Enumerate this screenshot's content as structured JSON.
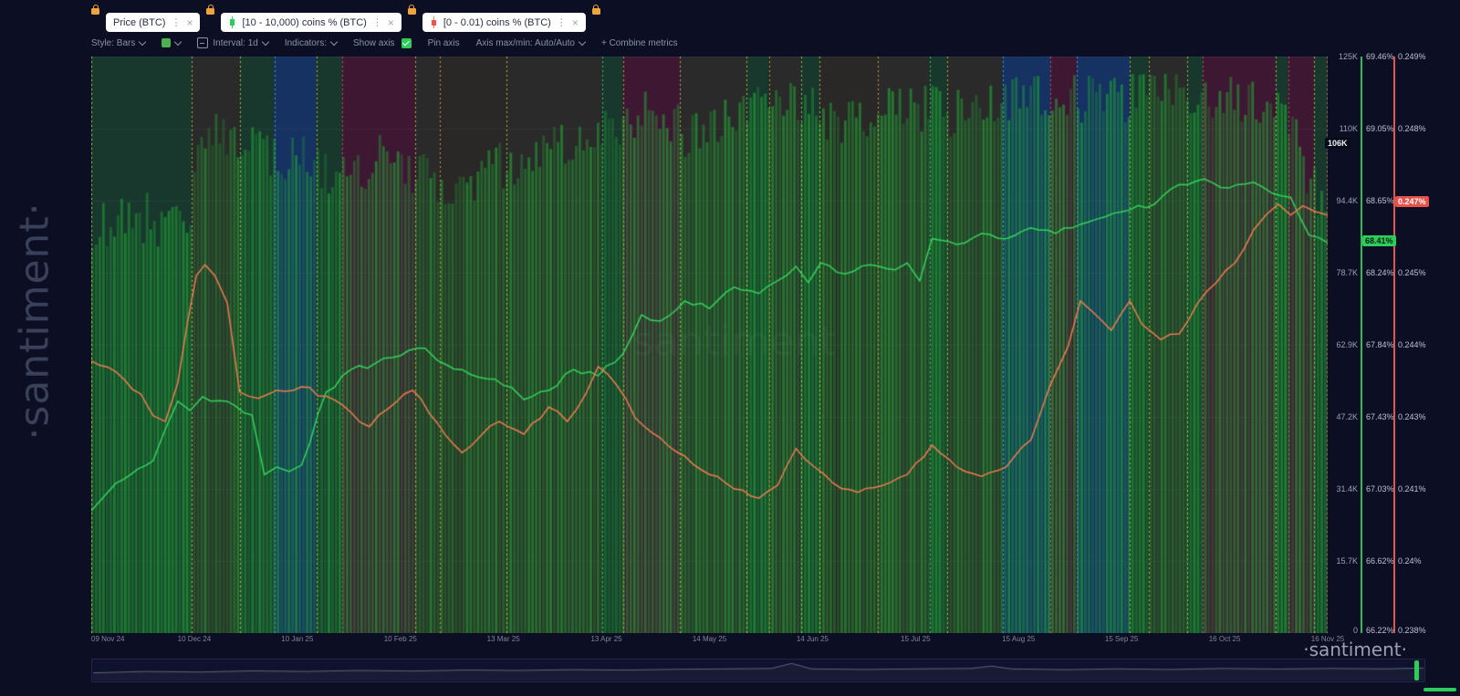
{
  "app": {
    "logo_vertical": "·santiment·",
    "logo_bottom": "·santiment·",
    "watermark": "santiment"
  },
  "icons": {
    "kebab_glyph": "⋮",
    "close_glyph": "×",
    "lock": "lock-icon",
    "chevron": "chevron-down-icon",
    "checkbox": "checkmark-icon",
    "candle_green": "candlestick-up-icon",
    "candle_red": "candlestick-down-icon"
  },
  "tabs": [
    {
      "label": "Price (BTC)",
      "locked": true
    },
    {
      "label": "[10 - 10,000) coins % (BTC)",
      "locked": true,
      "icon_color": "#2ecc5b"
    },
    {
      "label": "[0 - 0.01) coins % (BTC)",
      "locked": true,
      "icon_color": "#ef5350"
    }
  ],
  "toolbar": {
    "style_label": "Style: Bars",
    "swatch_color": "#4caf50",
    "interval_label": "Interval: 1d",
    "indicators_label": "Indicators:",
    "show_axis_label": "Show axis",
    "pin_axis_label": "Pin axis",
    "axis_maxmin_label": "Axis max/min: Auto/Auto",
    "combine_label": "+ Combine metrics"
  },
  "axes": {
    "price": {
      "labels": [
        "125K",
        "110K",
        "94.4K",
        "78.7K",
        "62.9K",
        "47.2K",
        "31.4K",
        "15.7K",
        "0"
      ],
      "badge": "106K"
    },
    "green_pct": {
      "labels": [
        "69.46%",
        "69.05%",
        "68.65%",
        "68.24%",
        "67.84%",
        "67.43%",
        "67.03%",
        "66.62%",
        "66.22%"
      ],
      "badge": "68.41%",
      "color": "#2ecc5b"
    },
    "red_pct": {
      "labels": [
        "0.249%",
        "0.248%",
        "",
        "0.245%",
        "0.244%",
        "0.243%",
        "0.241%",
        "0.24%",
        "0.238%"
      ],
      "badge": "0.247%",
      "color": "#e8504a"
    }
  },
  "x_axis": {
    "dates": [
      "09 Nov 24",
      "10 Dec 24",
      "10 Jan 25",
      "10 Feb 25",
      "13 Mar 25",
      "13 Apr 25",
      "14 May 25",
      "14 Jun 25",
      "15 Jul 25",
      "15 Aug 25",
      "15 Sep 25",
      "16 Oct 25",
      "16 Nov 25"
    ]
  },
  "chart_data": {
    "type": "bar",
    "bar_series_name": "Price (BTC)",
    "bar_count": 340,
    "bar_envelope": [
      [
        0.0,
        0.3
      ],
      [
        0.03,
        0.27
      ],
      [
        0.06,
        0.29
      ],
      [
        0.08,
        0.27
      ],
      [
        0.085,
        0.155
      ],
      [
        0.1,
        0.14
      ],
      [
        0.12,
        0.16
      ],
      [
        0.15,
        0.18
      ],
      [
        0.17,
        0.16
      ],
      [
        0.19,
        0.19
      ],
      [
        0.21,
        0.22
      ],
      [
        0.24,
        0.17
      ],
      [
        0.27,
        0.21
      ],
      [
        0.3,
        0.23
      ],
      [
        0.33,
        0.19
      ],
      [
        0.36,
        0.165
      ],
      [
        0.39,
        0.14
      ],
      [
        0.42,
        0.12
      ],
      [
        0.45,
        0.1
      ],
      [
        0.48,
        0.13
      ],
      [
        0.51,
        0.115
      ],
      [
        0.54,
        0.095
      ],
      [
        0.57,
        0.075
      ],
      [
        0.6,
        0.11
      ],
      [
        0.63,
        0.095
      ],
      [
        0.66,
        0.085
      ],
      [
        0.69,
        0.1
      ],
      [
        0.72,
        0.09
      ],
      [
        0.75,
        0.075
      ],
      [
        0.78,
        0.065
      ],
      [
        0.81,
        0.075
      ],
      [
        0.84,
        0.07
      ],
      [
        0.87,
        0.06
      ],
      [
        0.9,
        0.065
      ],
      [
        0.93,
        0.07
      ],
      [
        0.95,
        0.085
      ],
      [
        0.97,
        0.11
      ],
      [
        0.985,
        0.2
      ],
      [
        1.0,
        0.27
      ]
    ],
    "series": [
      {
        "name": "[10 - 10,000) coins % (BTC)",
        "color": "#35d05e",
        "points": [
          [
            0.0,
            0.788
          ],
          [
            0.01,
            0.764
          ],
          [
            0.02,
            0.74
          ],
          [
            0.032,
            0.725
          ],
          [
            0.05,
            0.701
          ],
          [
            0.06,
            0.646
          ],
          [
            0.07,
            0.598
          ],
          [
            0.08,
            0.614
          ],
          [
            0.09,
            0.59
          ],
          [
            0.11,
            0.598
          ],
          [
            0.13,
            0.622
          ],
          [
            0.14,
            0.725
          ],
          [
            0.15,
            0.712
          ],
          [
            0.16,
            0.72
          ],
          [
            0.17,
            0.709
          ],
          [
            0.19,
            0.582
          ],
          [
            0.21,
            0.543
          ],
          [
            0.23,
            0.532
          ],
          [
            0.25,
            0.519
          ],
          [
            0.27,
            0.506
          ],
          [
            0.28,
            0.527
          ],
          [
            0.3,
            0.543
          ],
          [
            0.32,
            0.559
          ],
          [
            0.34,
            0.574
          ],
          [
            0.35,
            0.595
          ],
          [
            0.37,
            0.579
          ],
          [
            0.39,
            0.543
          ],
          [
            0.41,
            0.554
          ],
          [
            0.43,
            0.516
          ],
          [
            0.445,
            0.448
          ],
          [
            0.46,
            0.459
          ],
          [
            0.48,
            0.424
          ],
          [
            0.5,
            0.437
          ],
          [
            0.52,
            0.4
          ],
          [
            0.54,
            0.411
          ],
          [
            0.555,
            0.389
          ],
          [
            0.57,
            0.364
          ],
          [
            0.58,
            0.392
          ],
          [
            0.59,
            0.358
          ],
          [
            0.61,
            0.377
          ],
          [
            0.63,
            0.361
          ],
          [
            0.65,
            0.37
          ],
          [
            0.66,
            0.358
          ],
          [
            0.67,
            0.389
          ],
          [
            0.68,
            0.316
          ],
          [
            0.7,
            0.326
          ],
          [
            0.72,
            0.307
          ],
          [
            0.74,
            0.316
          ],
          [
            0.76,
            0.297
          ],
          [
            0.78,
            0.307
          ],
          [
            0.8,
            0.291
          ],
          [
            0.82,
            0.278
          ],
          [
            0.84,
            0.266
          ],
          [
            0.86,
            0.256
          ],
          [
            0.88,
            0.222
          ],
          [
            0.9,
            0.212
          ],
          [
            0.92,
            0.228
          ],
          [
            0.94,
            0.218
          ],
          [
            0.955,
            0.237
          ],
          [
            0.97,
            0.244
          ],
          [
            0.985,
            0.31
          ],
          [
            1.0,
            0.323
          ]
        ]
      },
      {
        "name": "[0 - 0.01) coins % (BTC)",
        "color": "#ef7a52",
        "points": [
          [
            0.0,
            0.528
          ],
          [
            0.02,
            0.547
          ],
          [
            0.04,
            0.585
          ],
          [
            0.05,
            0.623
          ],
          [
            0.06,
            0.633
          ],
          [
            0.07,
            0.566
          ],
          [
            0.078,
            0.459
          ],
          [
            0.085,
            0.38
          ],
          [
            0.092,
            0.361
          ],
          [
            0.1,
            0.38
          ],
          [
            0.11,
            0.427
          ],
          [
            0.12,
            0.582
          ],
          [
            0.135,
            0.593
          ],
          [
            0.15,
            0.579
          ],
          [
            0.17,
            0.573
          ],
          [
            0.19,
            0.589
          ],
          [
            0.21,
            0.617
          ],
          [
            0.225,
            0.642
          ],
          [
            0.24,
            0.611
          ],
          [
            0.26,
            0.579
          ],
          [
            0.28,
            0.636
          ],
          [
            0.3,
            0.687
          ],
          [
            0.315,
            0.658
          ],
          [
            0.33,
            0.633
          ],
          [
            0.35,
            0.655
          ],
          [
            0.37,
            0.608
          ],
          [
            0.385,
            0.633
          ],
          [
            0.4,
            0.585
          ],
          [
            0.41,
            0.538
          ],
          [
            0.425,
            0.57
          ],
          [
            0.44,
            0.627
          ],
          [
            0.46,
            0.661
          ],
          [
            0.48,
            0.693
          ],
          [
            0.5,
            0.725
          ],
          [
            0.52,
            0.75
          ],
          [
            0.54,
            0.766
          ],
          [
            0.555,
            0.744
          ],
          [
            0.57,
            0.68
          ],
          [
            0.585,
            0.712
          ],
          [
            0.6,
            0.74
          ],
          [
            0.62,
            0.756
          ],
          [
            0.64,
            0.744
          ],
          [
            0.66,
            0.725
          ],
          [
            0.68,
            0.674
          ],
          [
            0.7,
            0.712
          ],
          [
            0.72,
            0.728
          ],
          [
            0.74,
            0.712
          ],
          [
            0.76,
            0.665
          ],
          [
            0.775,
            0.573
          ],
          [
            0.79,
            0.503
          ],
          [
            0.8,
            0.424
          ],
          [
            0.81,
            0.443
          ],
          [
            0.825,
            0.475
          ],
          [
            0.84,
            0.424
          ],
          [
            0.85,
            0.465
          ],
          [
            0.865,
            0.491
          ],
          [
            0.88,
            0.481
          ],
          [
            0.895,
            0.427
          ],
          [
            0.91,
            0.392
          ],
          [
            0.925,
            0.358
          ],
          [
            0.94,
            0.301
          ],
          [
            0.95,
            0.275
          ],
          [
            0.96,
            0.256
          ],
          [
            0.97,
            0.275
          ],
          [
            0.98,
            0.259
          ],
          [
            0.99,
            0.269
          ],
          [
            1.0,
            0.275
          ]
        ]
      }
    ],
    "bands": [
      {
        "x0": 0.0,
        "x1": 0.081,
        "tint": "green",
        "edge": "yellow"
      },
      {
        "x0": 0.081,
        "x1": 0.12,
        "tint": "olive",
        "edge": "yellow"
      },
      {
        "x0": 0.12,
        "x1": 0.148,
        "tint": "green",
        "edge": "yellow"
      },
      {
        "x0": 0.148,
        "x1": 0.182,
        "tint": "blue",
        "edge": "blue"
      },
      {
        "x0": 0.182,
        "x1": 0.203,
        "tint": "green",
        "edge": "yellow"
      },
      {
        "x0": 0.203,
        "x1": 0.262,
        "tint": "maroon",
        "edge": "red"
      },
      {
        "x0": 0.262,
        "x1": 0.282,
        "tint": "olive",
        "edge": "yellow"
      },
      {
        "x0": 0.282,
        "x1": 0.336,
        "tint": "olive2",
        "edge": "orange"
      },
      {
        "x0": 0.336,
        "x1": 0.413,
        "tint": "olive",
        "edge": "yellow"
      },
      {
        "x0": 0.413,
        "x1": 0.43,
        "tint": "green",
        "edge": "green"
      },
      {
        "x0": 0.43,
        "x1": 0.476,
        "tint": "maroon",
        "edge": "orange"
      },
      {
        "x0": 0.476,
        "x1": 0.53,
        "tint": "olive",
        "edge": "yellow"
      },
      {
        "x0": 0.53,
        "x1": 0.548,
        "tint": "green",
        "edge": "yellow"
      },
      {
        "x0": 0.548,
        "x1": 0.574,
        "tint": "olive",
        "edge": "orange"
      },
      {
        "x0": 0.574,
        "x1": 0.589,
        "tint": "green",
        "edge": "yellow"
      },
      {
        "x0": 0.589,
        "x1": 0.636,
        "tint": "olive2",
        "edge": "yellow"
      },
      {
        "x0": 0.636,
        "x1": 0.678,
        "tint": "olive",
        "edge": "orange"
      },
      {
        "x0": 0.678,
        "x1": 0.692,
        "tint": "green",
        "edge": "green"
      },
      {
        "x0": 0.692,
        "x1": 0.737,
        "tint": "olive",
        "edge": "yellow"
      },
      {
        "x0": 0.737,
        "x1": 0.776,
        "tint": "blue",
        "edge": "blue"
      },
      {
        "x0": 0.776,
        "x1": 0.797,
        "tint": "maroon",
        "edge": "red"
      },
      {
        "x0": 0.797,
        "x1": 0.84,
        "tint": "blue",
        "edge": "blue"
      },
      {
        "x0": 0.84,
        "x1": 0.855,
        "tint": "green",
        "edge": "yellow"
      },
      {
        "x0": 0.855,
        "x1": 0.886,
        "tint": "olive",
        "edge": "yellow"
      },
      {
        "x0": 0.886,
        "x1": 0.899,
        "tint": "green",
        "edge": "yellow"
      },
      {
        "x0": 0.899,
        "x1": 0.958,
        "tint": "maroon",
        "edge": "red"
      },
      {
        "x0": 0.958,
        "x1": 0.968,
        "tint": "green",
        "edge": "yellow"
      },
      {
        "x0": 0.968,
        "x1": 0.989,
        "tint": "maroon",
        "edge": "red"
      },
      {
        "x0": 0.989,
        "x1": 1.0,
        "tint": "green",
        "edge": "yellow"
      }
    ],
    "right_edge": "red",
    "nav_line": {
      "color": "rgba(190,200,225,0.45)",
      "points": [
        [
          0.0,
          0.62
        ],
        [
          0.04,
          0.55
        ],
        [
          0.08,
          0.58
        ],
        [
          0.12,
          0.52
        ],
        [
          0.16,
          0.55
        ],
        [
          0.2,
          0.5
        ],
        [
          0.24,
          0.53
        ],
        [
          0.28,
          0.48
        ],
        [
          0.32,
          0.5
        ],
        [
          0.36,
          0.46
        ],
        [
          0.4,
          0.48
        ],
        [
          0.44,
          0.44
        ],
        [
          0.48,
          0.42
        ],
        [
          0.51,
          0.4
        ],
        [
          0.525,
          0.15
        ],
        [
          0.54,
          0.42
        ],
        [
          0.58,
          0.45
        ],
        [
          0.62,
          0.42
        ],
        [
          0.66,
          0.4
        ],
        [
          0.675,
          0.28
        ],
        [
          0.69,
          0.42
        ],
        [
          0.73,
          0.46
        ],
        [
          0.77,
          0.42
        ],
        [
          0.81,
          0.45
        ],
        [
          0.85,
          0.4
        ],
        [
          0.89,
          0.43
        ],
        [
          0.93,
          0.4
        ],
        [
          0.97,
          0.42
        ],
        [
          1.0,
          0.38
        ]
      ]
    },
    "colors": {
      "plot_bg": "#11152f",
      "grid": "rgba(160,175,210,0.07)",
      "bar_rgb": "34,165,52",
      "watermark": "rgba(200,210,230,0.05)",
      "band_tints": {
        "green": "rgba(42,138,48,0.30)",
        "olive": "rgba(125,112,28,0.24)",
        "olive2": "rgba(98,86,22,0.30)",
        "maroon": "rgba(158,32,62,0.32)",
        "blue": "rgba(28,98,185,0.38)"
      },
      "edge_colors": {
        "yellow": "rgba(205,210,60,0.85)",
        "red": "rgba(226,85,85,0.9)",
        "blue": "rgba(90,160,224,0.9)",
        "orange": "rgba(226,162,58,0.9)",
        "green": "rgba(63,212,104,0.9)"
      }
    }
  }
}
